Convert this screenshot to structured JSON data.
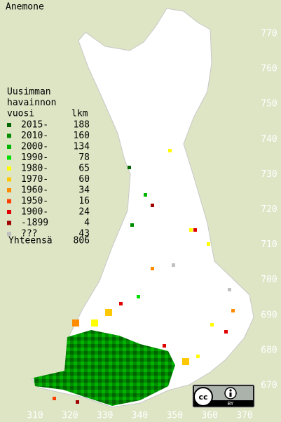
{
  "title": "Anemone",
  "legend": {
    "heading": [
      "Uusimman",
      "havainnon",
      "vuosi"
    ],
    "count_heading": "lkm",
    "rows": [
      {
        "label": "2015-",
        "count": 188,
        "color": "#006400"
      },
      {
        "label": "2010-",
        "count": 160,
        "color": "#008c00"
      },
      {
        "label": "2000-",
        "count": 134,
        "color": "#00b400"
      },
      {
        "label": "1990-",
        "count": 78,
        "color": "#00e000"
      },
      {
        "label": "1980-",
        "count": 65,
        "color": "#ffff00"
      },
      {
        "label": "1970-",
        "count": 60,
        "color": "#ffc800"
      },
      {
        "label": "1960-",
        "count": 34,
        "color": "#ff8c00"
      },
      {
        "label": "1950-",
        "count": 16,
        "color": "#ff4000"
      },
      {
        "label": "1900-",
        "count": 24,
        "color": "#e00000"
      },
      {
        "label": "-1899",
        "count": 4,
        "color": "#a00000"
      },
      {
        "label": "???",
        "count": 43,
        "color": "#c0c0c0"
      }
    ],
    "total_label": "Yhteensä",
    "total": 806
  },
  "axes": {
    "x_labels": [
      310,
      320,
      330,
      340,
      350,
      360,
      370
    ],
    "y_labels": [
      670,
      680,
      690,
      700,
      710,
      720,
      730,
      740,
      750,
      760,
      770
    ]
  },
  "license": "BY"
}
